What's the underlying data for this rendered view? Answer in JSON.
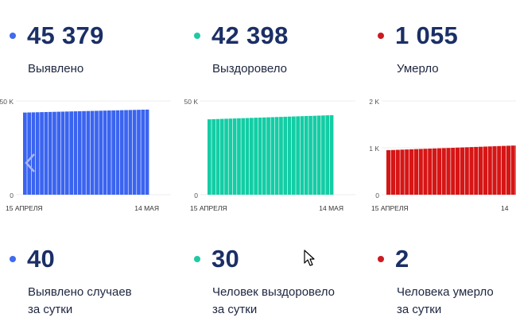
{
  "top_stats": [
    {
      "value": "45 379",
      "label": "Выявлено",
      "color": "#3f6bef"
    },
    {
      "value": "42 398",
      "label": "Выздоровело",
      "color": "#1fc9a2"
    },
    {
      "value": "1 055",
      "label": "Умерло",
      "color": "#cc1a22"
    }
  ],
  "daily_stats": [
    {
      "value": "40",
      "label_line1": "Выявлено случаев",
      "label_line2": "за сутки",
      "color": "#3f6bef"
    },
    {
      "value": "30",
      "label_line1": "Человек выздоровело",
      "label_line2": "за сутки",
      "color": "#1fc9a2"
    },
    {
      "value": "2",
      "label_line1": "Человека умерло",
      "label_line2": "за сутки",
      "color": "#cc1a22"
    }
  ],
  "chart_data": [
    {
      "type": "bar",
      "color": "#3a64f0",
      "ytick_labels": [
        "50 K",
        "0"
      ],
      "ylim": [
        0,
        50000
      ],
      "x_start_label": "15 АПРЕЛЯ",
      "x_end_label": "14 МАЯ",
      "start_value": 43800,
      "end_value": 45379,
      "bars": 30
    },
    {
      "type": "bar",
      "color": "#13cda5",
      "ytick_labels": [
        "50 K",
        "0"
      ],
      "ylim": [
        0,
        50000
      ],
      "x_start_label": "15 АПРЕЛЯ",
      "x_end_label": "14 МАЯ",
      "start_value": 40200,
      "end_value": 42398,
      "bars": 30
    },
    {
      "type": "bar",
      "color": "#d61515",
      "ytick_labels": [
        "2 K",
        "1 K",
        "0"
      ],
      "ylim": [
        0,
        2000
      ],
      "x_start_label": "15 АПРЕЛЯ",
      "x_end_label": "14",
      "start_value": 950,
      "end_value": 1055,
      "bars": 30
    }
  ],
  "icons": {
    "prev": "chevron-left-icon",
    "cursor": "mouse-cursor-icon"
  }
}
